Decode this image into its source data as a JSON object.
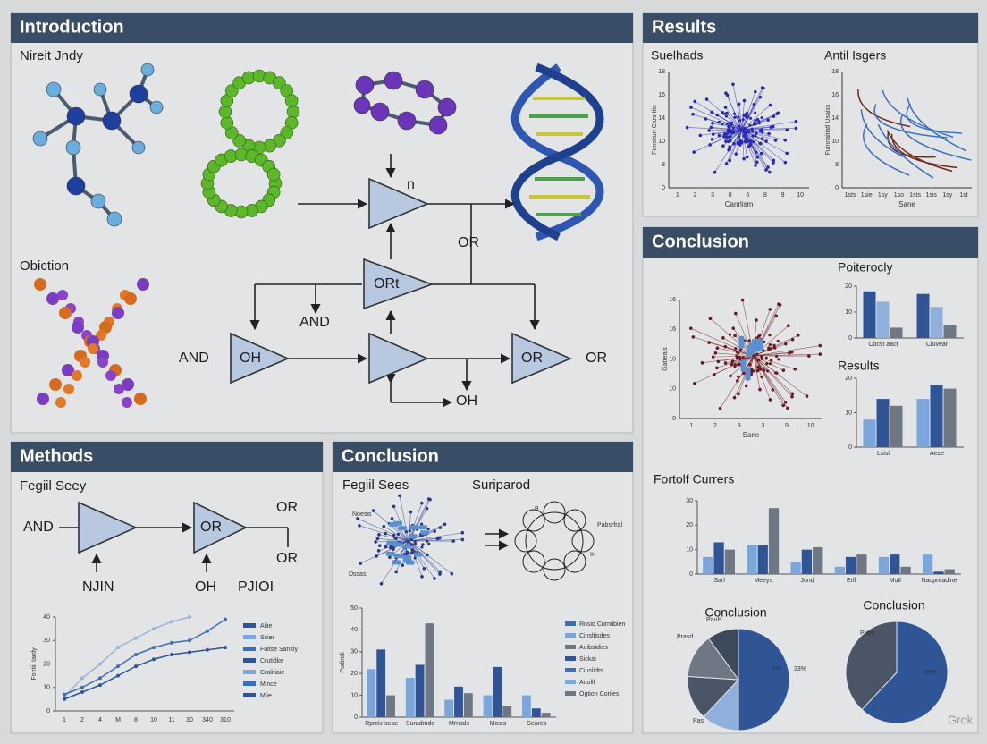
{
  "intro": {
    "title": "Introduction",
    "captions": [
      "Nireit Jndy",
      "Obiction"
    ],
    "gates": [
      "n",
      "ORt",
      "OH",
      "OR"
    ],
    "labels": [
      "OR",
      "AND",
      "AND",
      "OR",
      "OH"
    ]
  },
  "results": {
    "title": "Results",
    "plots": [
      {
        "title": "Suelhads",
        "xlabel": "Canrlism",
        "ylabel": "Fenotiurt Cars Itio",
        "xticks": [
          "1",
          "2",
          "3",
          "8",
          "6",
          "8",
          "9",
          "10"
        ],
        "yticks": [
          "18",
          "16",
          "14",
          "10",
          "8",
          "0"
        ]
      },
      {
        "title": "Antil Isgers",
        "xlabel": "Sane",
        "ylabel": "Fuinnaitiatl Usaiss",
        "xticks": [
          "1sts",
          "1sie",
          "1sy",
          "1so",
          "1sts",
          "1sis",
          "1sy",
          "1st"
        ],
        "yticks": [
          "18",
          "16",
          "14",
          "10",
          "8",
          "0"
        ]
      }
    ]
  },
  "conclusion_right": {
    "title": "Conclusion",
    "scatter": {
      "xlabel": "Sane",
      "ylabel": "Gatreals",
      "xticks": [
        "1",
        "2",
        "3",
        "3",
        "9",
        "10"
      ],
      "yticks": [
        "16",
        "16",
        "10",
        "10",
        "0"
      ]
    },
    "bars": [
      {
        "title": "Poiterocly",
        "categories": [
          "Cocst aact",
          "Cluvear"
        ],
        "ylim": [
          0,
          20
        ],
        "yticks": [
          0,
          10,
          20
        ],
        "series": [
          {
            "color": "#2f5597",
            "values": [
              18,
              17
            ]
          },
          {
            "color": "#8fb0dd",
            "values": [
              14,
              12
            ]
          },
          {
            "color": "#6f7784",
            "values": [
              4,
              5
            ]
          }
        ]
      },
      {
        "title": "Results",
        "categories": [
          "Lsisl",
          "Aeze"
        ],
        "ylim": [
          0,
          20
        ],
        "yticks": [
          0,
          10,
          20
        ],
        "series": [
          {
            "color": "#7aa6dc",
            "values": [
              8,
              14
            ]
          },
          {
            "color": "#2f5597",
            "values": [
              14,
              18
            ]
          },
          {
            "color": "#6f7784",
            "values": [
              12,
              17
            ]
          }
        ]
      },
      {
        "title": "Fortolf Currers",
        "categories": [
          "Sarl",
          "Meeys",
          "Jund",
          "Erll",
          "Mutl",
          "Naopreadine"
        ],
        "ylim": [
          0,
          30
        ],
        "yticks": [
          0,
          10,
          20,
          30
        ],
        "series": [
          {
            "color": "#7aa6dc",
            "values": [
              7,
              12,
              5,
              3,
              7,
              8
            ]
          },
          {
            "color": "#2f5597",
            "values": [
              13,
              12,
              10,
              7,
              8,
              1
            ]
          },
          {
            "color": "#6f7784",
            "values": [
              10,
              27,
              11,
              8,
              3,
              2
            ]
          }
        ]
      }
    ],
    "pies": [
      {
        "title": "Conclusion",
        "values": [
          50,
          12,
          14,
          14,
          10
        ],
        "colors": [
          "#2f5597",
          "#8fb0dd",
          "#4a5566",
          "#6f7784",
          "#3c4a5c"
        ],
        "labels": [
          "Pauls",
          "Prasd",
          "Pas",
          "7%",
          "33%"
        ]
      },
      {
        "title": "Conclusion",
        "values": [
          62,
          38
        ],
        "colors": [
          "#2f5597",
          "#4a5566"
        ],
        "labels": [
          "Pram",
          "25%"
        ]
      }
    ]
  },
  "methods": {
    "title": "Methods",
    "caption": "Fegiil Seey",
    "labels": [
      "AND",
      "OR",
      "OR",
      "OR",
      "NJIN",
      "OH",
      "PJIOI"
    ],
    "chart": {
      "ylim": [
        0,
        40
      ],
      "yticks": [
        0,
        10,
        20,
        30,
        40
      ],
      "ylabel": "Fontiil Iardy",
      "categories": [
        "1",
        "2",
        "4",
        "M",
        "8",
        "10",
        "11",
        "30",
        "340",
        "310"
      ],
      "series": [
        {
          "color": "#9ab4d8",
          "values": [
            6,
            14,
            20,
            27,
            31,
            35,
            38,
            40,
            null,
            null
          ]
        },
        {
          "color": "#3f6fb0",
          "values": [
            7,
            10,
            14,
            19,
            24,
            27,
            29,
            30,
            34,
            39
          ]
        },
        {
          "color": "#2f5597",
          "values": [
            5,
            8,
            11,
            15,
            19,
            22,
            24,
            25,
            26,
            27
          ]
        }
      ],
      "legend": [
        "Aliie",
        "Ssier",
        "Fuitse Sanitiy",
        "Crutidke",
        "Cralitiaie",
        "Mlnce",
        "Mjie"
      ]
    }
  },
  "conclusion_mid": {
    "title": "Conclusion",
    "captions": [
      "Fegiil Sees",
      "Suriparod"
    ],
    "scatter_labels": [
      "Noesis",
      "Dssas"
    ],
    "ring_labels": [
      "Pabsrfral",
      "In",
      "B"
    ],
    "chart": {
      "ylim": [
        0,
        50
      ],
      "yticks": [
        0,
        10,
        20,
        30,
        40,
        50
      ],
      "ylabel": "Pudireli",
      "categories": [
        "Rprciv seae",
        "Suradmde",
        "Mrrcals",
        "Mosts",
        "Seares"
      ],
      "series": [
        {
          "color": "#7aa6dc",
          "values": [
            22,
            18,
            8,
            10,
            10
          ]
        },
        {
          "color": "#2f5597",
          "values": [
            31,
            24,
            14,
            23,
            4
          ]
        },
        {
          "color": "#6f7784",
          "values": [
            10,
            43,
            11,
            5,
            2
          ]
        }
      ],
      "legend": [
        "Rnsid Curniibien",
        "Cinsltisdes",
        "Auibsidies",
        "Sickal",
        "Ciuslidts",
        "Auolll",
        "Ogtion Coriies"
      ]
    }
  },
  "watermark": "Grok"
}
